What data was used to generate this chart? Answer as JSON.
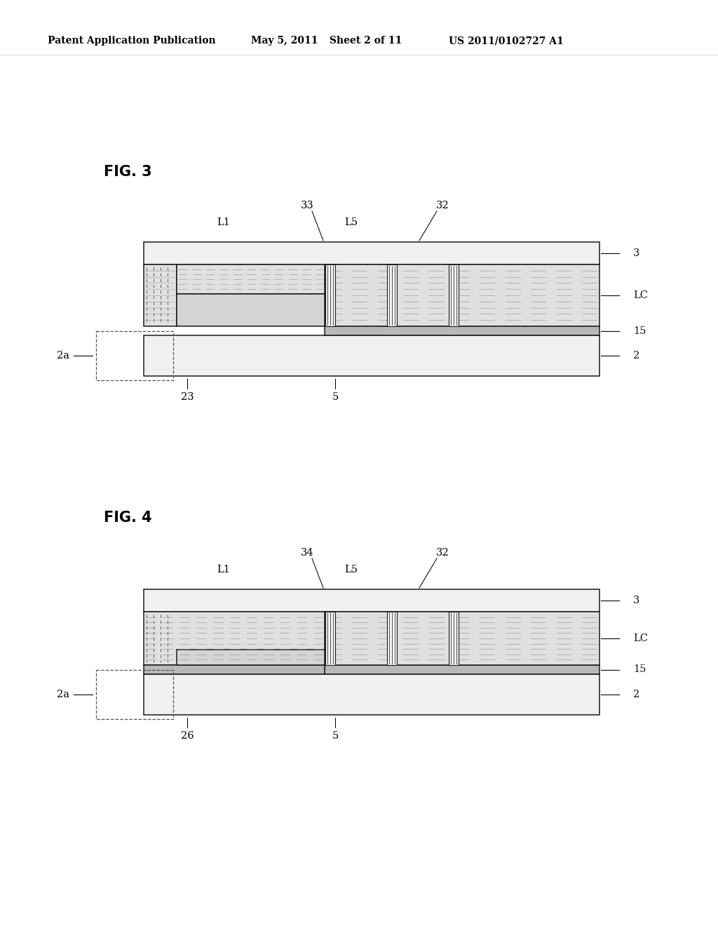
{
  "bg_color": "#ffffff",
  "line_color": "#1a1a1a",
  "glass_color": "#f0f0f0",
  "lc_fill": "#e0e0e0",
  "pix_fill": "#d4d4d4",
  "elec_fill": "#b8b8b8",
  "header_left": "Patent Application Publication",
  "header_mid1": "May 5, 2011",
  "header_mid2": "Sheet 2 of 11",
  "header_right": "US 2011/0102727 A1",
  "fig3_title": "FIG. 3",
  "fig4_title": "FIG. 4",
  "fig3_label33": "33",
  "fig3_labelbot": "23",
  "fig4_label34": "34",
  "fig4_labelbot": "26"
}
